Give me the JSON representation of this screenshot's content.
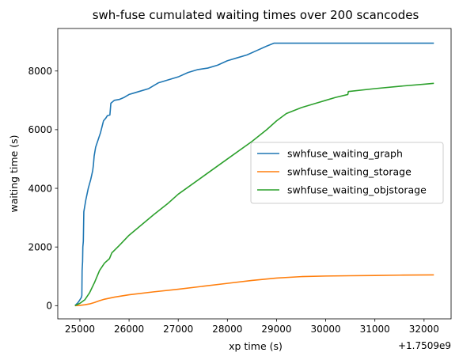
{
  "chart_data": {
    "type": "line",
    "title": "swh-fuse cumulated waiting times over 200 scancodes",
    "xlabel": "xp time (s)",
    "ylabel": "waiting time (s)",
    "x_offset_label": "+1.7509e9",
    "xlim": [
      24550,
      32550
    ],
    "ylim": [
      -450,
      9450
    ],
    "xticks": [
      25000,
      26000,
      27000,
      28000,
      29000,
      30000,
      31000,
      32000
    ],
    "xtick_labels": [
      "25000",
      "26000",
      "27000",
      "28000",
      "29000",
      "30000",
      "31000",
      "32000"
    ],
    "yticks": [
      0,
      2000,
      4000,
      6000,
      8000
    ],
    "ytick_labels": [
      "0",
      "2000",
      "4000",
      "6000",
      "8000"
    ],
    "legend_position": "center-right",
    "series": [
      {
        "name": "swhfuse_waiting_graph",
        "color": "#1f77b4",
        "points": [
          [
            24900,
            0
          ],
          [
            24960,
            100
          ],
          [
            25000,
            200
          ],
          [
            25030,
            280
          ],
          [
            25040,
            350
          ],
          [
            25045,
            1200
          ],
          [
            25055,
            1500
          ],
          [
            25060,
            2000
          ],
          [
            25070,
            2200
          ],
          [
            25080,
            3200
          ],
          [
            25120,
            3600
          ],
          [
            25170,
            4000
          ],
          [
            25220,
            4300
          ],
          [
            25260,
            4600
          ],
          [
            25275,
            4800
          ],
          [
            25290,
            5100
          ],
          [
            25320,
            5400
          ],
          [
            25380,
            5700
          ],
          [
            25420,
            5900
          ],
          [
            25450,
            6100
          ],
          [
            25480,
            6300
          ],
          [
            25530,
            6400
          ],
          [
            25560,
            6480
          ],
          [
            25610,
            6500
          ],
          [
            25630,
            6900
          ],
          [
            25700,
            7000
          ],
          [
            25800,
            7030
          ],
          [
            25900,
            7100
          ],
          [
            26000,
            7200
          ],
          [
            26100,
            7250
          ],
          [
            26200,
            7300
          ],
          [
            26400,
            7400
          ],
          [
            26600,
            7600
          ],
          [
            26800,
            7700
          ],
          [
            27000,
            7800
          ],
          [
            27200,
            7950
          ],
          [
            27400,
            8050
          ],
          [
            27600,
            8100
          ],
          [
            27800,
            8200
          ],
          [
            28000,
            8350
          ],
          [
            28200,
            8450
          ],
          [
            28400,
            8550
          ],
          [
            28600,
            8700
          ],
          [
            28800,
            8850
          ],
          [
            28950,
            8950
          ],
          [
            29500,
            8950
          ],
          [
            30000,
            8950
          ],
          [
            31000,
            8950
          ],
          [
            32200,
            8950
          ]
        ]
      },
      {
        "name": "swhfuse_waiting_storage",
        "color": "#ff7f0e",
        "points": [
          [
            24900,
            0
          ],
          [
            25000,
            10
          ],
          [
            25100,
            30
          ],
          [
            25200,
            60
          ],
          [
            25300,
            110
          ],
          [
            25400,
            170
          ],
          [
            25500,
            220
          ],
          [
            25700,
            290
          ],
          [
            26000,
            370
          ],
          [
            26500,
            470
          ],
          [
            27000,
            560
          ],
          [
            27500,
            660
          ],
          [
            28000,
            760
          ],
          [
            28500,
            860
          ],
          [
            29000,
            940
          ],
          [
            29500,
            990
          ],
          [
            30000,
            1010
          ],
          [
            30500,
            1020
          ],
          [
            31000,
            1030
          ],
          [
            31500,
            1040
          ],
          [
            32200,
            1050
          ]
        ]
      },
      {
        "name": "swhfuse_waiting_objstorage",
        "color": "#2ca02c",
        "points": [
          [
            24900,
            0
          ],
          [
            25000,
            80
          ],
          [
            25100,
            200
          ],
          [
            25200,
            450
          ],
          [
            25300,
            800
          ],
          [
            25400,
            1200
          ],
          [
            25500,
            1450
          ],
          [
            25600,
            1600
          ],
          [
            25650,
            1800
          ],
          [
            25800,
            2050
          ],
          [
            26000,
            2400
          ],
          [
            26250,
            2750
          ],
          [
            26500,
            3100
          ],
          [
            26800,
            3500
          ],
          [
            27000,
            3800
          ],
          [
            27500,
            4400
          ],
          [
            28000,
            5000
          ],
          [
            28500,
            5600
          ],
          [
            28800,
            6000
          ],
          [
            29000,
            6300
          ],
          [
            29200,
            6550
          ],
          [
            29500,
            6750
          ],
          [
            29800,
            6900
          ],
          [
            30000,
            7000
          ],
          [
            30200,
            7100
          ],
          [
            30450,
            7200
          ],
          [
            30460,
            7300
          ],
          [
            31000,
            7400
          ],
          [
            31500,
            7480
          ],
          [
            32000,
            7550
          ],
          [
            32200,
            7580
          ]
        ]
      }
    ]
  }
}
